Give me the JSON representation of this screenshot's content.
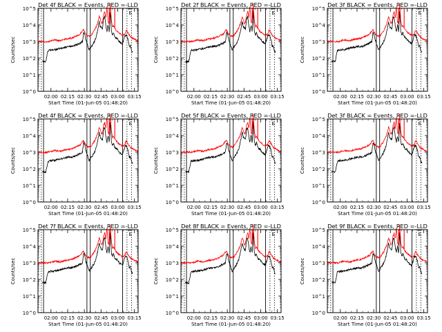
{
  "figure": {
    "ylabel": "Counts/sec",
    "xlabel": "Start Time (01-Jun-05 01:48:20)",
    "x_ticks": [
      "02:00",
      "02:15",
      "02:30",
      "02:45",
      "03:00",
      "03:15"
    ],
    "y_ticks": [
      "10^0",
      "10^1",
      "10^2",
      "10^3",
      "10^4",
      "10^5"
    ],
    "flag_label": "E",
    "colors": {
      "events": "#000000",
      "lld": "#ff0000",
      "axes": "#000000"
    }
  },
  "chart_data": [
    {
      "type": "line",
      "title": "Det 4f BLACK = Events, RED =-LLD",
      "panel": "det-4f-top",
      "xlabel": "Start Time (01-Jun-05 01:48:20)",
      "ylabel": "Counts/sec",
      "xlim_min": [
        0,
        90
      ],
      "ylim_log10": [
        0,
        5
      ],
      "series": [
        {
          "name": "Events",
          "color": "#000000"
        },
        {
          "name": "LLD",
          "color": "#ff0000"
        }
      ]
    },
    {
      "type": "line",
      "title": "Det 2f BLACK = Events, RED =-LLD",
      "panel": "det-2f",
      "xlabel": "Start Time (01-Jun-05 01:48:20)",
      "ylabel": "Counts/sec",
      "xlim_min": [
        0,
        90
      ],
      "ylim_log10": [
        0,
        5
      ],
      "series": [
        {
          "name": "Events",
          "color": "#000000"
        },
        {
          "name": "LLD",
          "color": "#ff0000"
        }
      ]
    },
    {
      "type": "line",
      "title": "Det 3f BLACK = Events, RED =-LLD",
      "panel": "det-3f",
      "xlabel": "Start Time (01-Jun-05 01:48:20)",
      "ylabel": "Counts/sec",
      "xlim_min": [
        0,
        90
      ],
      "ylim_log10": [
        0,
        5
      ],
      "series": [
        {
          "name": "Events",
          "color": "#000000"
        },
        {
          "name": "LLD",
          "color": "#ff0000"
        }
      ]
    },
    {
      "type": "line",
      "title": "Det 4f BLACK = Events, RED =-LLD",
      "panel": "det-4f-middle",
      "xlabel": "Start Time (01-Jun-05 01:48:20)",
      "ylabel": "Counts/sec",
      "xlim_min": [
        0,
        90
      ],
      "ylim_log10": [
        0,
        5
      ],
      "series": [
        {
          "name": "Events",
          "color": "#000000"
        },
        {
          "name": "LLD",
          "color": "#ff0000"
        }
      ]
    },
    {
      "type": "line",
      "title": "Det 5f BLACK = Events, RED =-LLD",
      "panel": "det-5f",
      "xlabel": "Start Time (01-Jun-05 01:48:20)",
      "ylabel": "Counts/sec",
      "xlim_min": [
        0,
        90
      ],
      "ylim_log10": [
        0,
        5
      ],
      "series": [
        {
          "name": "Events",
          "color": "#000000"
        },
        {
          "name": "LLD",
          "color": "#ff0000"
        }
      ]
    },
    {
      "type": "line",
      "title": "Det 3f BLACK = Events, RED =-LLD",
      "panel": "det-3f-middle",
      "xlabel": "Start Time (01-Jun-05 01:48:20)",
      "ylabel": "Counts/sec",
      "xlim_min": [
        0,
        90
      ],
      "ylim_log10": [
        0,
        5
      ],
      "series": [
        {
          "name": "Events",
          "color": "#000000"
        },
        {
          "name": "LLD",
          "color": "#ff0000"
        }
      ]
    },
    {
      "type": "line",
      "title": "Det 7f BLACK = Events, RED =-LLD",
      "panel": "det-7f",
      "xlabel": "Start Time (01-Jun-05 01:48:20)",
      "ylabel": "Counts/sec",
      "xlim_min": [
        0,
        90
      ],
      "ylim_log10": [
        0,
        5
      ],
      "series": [
        {
          "name": "Events",
          "color": "#000000"
        },
        {
          "name": "LLD",
          "color": "#ff0000"
        }
      ]
    },
    {
      "type": "line",
      "title": "Det 8f BLACK = Events, RED =-LLD",
      "panel": "det-8f",
      "xlabel": "Start Time (01-Jun-05 01:48:20)",
      "ylabel": "Counts/sec",
      "xlim_min": [
        0,
        90
      ],
      "ylim_log10": [
        0,
        5
      ],
      "series": [
        {
          "name": "Events",
          "color": "#000000"
        },
        {
          "name": "LLD",
          "color": "#ff0000"
        }
      ]
    },
    {
      "type": "line",
      "title": "Det 9f BLACK = Events, RED =-LLD",
      "panel": "det-9f",
      "xlabel": "Start Time (01-Jun-05 01:48:20)",
      "ylabel": "Counts/sec",
      "xlim_min": [
        0,
        90
      ],
      "ylim_log10": [
        0,
        5
      ],
      "series": [
        {
          "name": "Events",
          "color": "#000000"
        },
        {
          "name": "LLD",
          "color": "#ff0000"
        }
      ]
    }
  ],
  "markers": {
    "solid_minutes": [
      5,
      44,
      47,
      76
    ],
    "dotted_minutes": [
      3,
      80,
      84
    ],
    "flag_minute": 81
  },
  "profiles": {
    "black": [
      [
        4,
        1.8
      ],
      [
        7,
        1.8
      ],
      [
        9,
        2.45
      ],
      [
        12,
        2.5
      ],
      [
        15,
        2.5
      ],
      [
        18,
        2.55
      ],
      [
        21,
        2.6
      ],
      [
        24,
        2.65
      ],
      [
        27,
        2.7
      ],
      [
        30,
        2.7
      ],
      [
        33,
        2.75
      ],
      [
        36,
        2.85
      ],
      [
        38,
        2.9
      ],
      [
        40,
        3.0
      ],
      [
        41,
        3.55
      ],
      [
        42,
        3.45
      ],
      [
        43,
        3.1
      ],
      [
        44,
        2.9
      ],
      [
        46,
        2.5
      ],
      [
        48,
        2.7
      ],
      [
        50,
        2.9
      ],
      [
        52,
        3.2
      ],
      [
        54,
        3.8
      ],
      [
        55,
        4.2
      ],
      [
        56,
        3.9
      ],
      [
        58,
        3.75
      ],
      [
        59,
        4.4
      ],
      [
        60,
        4.5
      ],
      [
        61,
        3.95
      ],
      [
        62,
        3.6
      ],
      [
        63,
        4.0
      ],
      [
        64,
        3.6
      ],
      [
        65,
        4.8
      ],
      [
        66,
        3.6
      ],
      [
        67,
        3.4
      ],
      [
        68,
        3.55
      ],
      [
        69,
        3.3
      ],
      [
        70,
        3.2
      ],
      [
        71,
        3.2
      ],
      [
        72,
        3.1
      ],
      [
        73,
        3.0
      ],
      [
        74,
        2.95
      ],
      [
        75,
        2.9
      ],
      [
        76,
        2.85
      ],
      [
        77,
        3.1
      ],
      [
        78,
        3.35
      ],
      [
        79,
        3.4
      ],
      [
        80,
        3.3
      ],
      [
        81,
        3.1
      ],
      [
        82,
        2.7
      ],
      [
        83,
        2.75
      ],
      [
        84,
        2.45
      ],
      [
        85,
        2.35
      ]
    ],
    "red": [
      [
        0,
        3.0
      ],
      [
        5,
        3.0
      ],
      [
        10,
        3.0
      ],
      [
        15,
        3.1
      ],
      [
        20,
        3.05
      ],
      [
        25,
        3.15
      ],
      [
        30,
        3.2
      ],
      [
        35,
        3.35
      ],
      [
        38,
        3.45
      ],
      [
        40,
        3.65
      ],
      [
        41,
        3.7
      ],
      [
        42,
        3.55
      ],
      [
        44,
        3.35
      ],
      [
        47,
        3.3
      ],
      [
        49,
        3.5
      ],
      [
        51,
        3.7
      ],
      [
        53,
        4.0
      ],
      [
        54,
        4.2
      ],
      [
        55,
        4.5
      ],
      [
        56,
        4.35
      ],
      [
        57,
        4.1
      ],
      [
        58,
        4.15
      ],
      [
        59,
        4.6
      ],
      [
        60,
        4.8
      ],
      [
        61,
        4.45
      ],
      [
        62,
        5.1
      ],
      [
        63,
        4.2
      ],
      [
        64,
        4.1
      ],
      [
        65,
        5.3
      ],
      [
        66,
        4.25
      ],
      [
        67,
        3.9
      ],
      [
        68,
        3.95
      ],
      [
        69,
        3.8
      ],
      [
        70,
        3.7
      ],
      [
        72,
        3.55
      ],
      [
        74,
        3.45
      ],
      [
        76,
        3.35
      ],
      [
        78,
        3.45
      ],
      [
        79,
        3.65
      ],
      [
        80,
        3.65
      ],
      [
        81,
        3.5
      ],
      [
        83,
        3.3
      ],
      [
        85,
        3.2
      ],
      [
        88,
        3.1
      ],
      [
        90,
        3.05
      ]
    ],
    "red_spikes": [
      [
        62,
        5.2
      ],
      [
        64,
        5.0
      ],
      [
        65,
        5.6
      ],
      [
        69,
        5.1
      ]
    ]
  }
}
